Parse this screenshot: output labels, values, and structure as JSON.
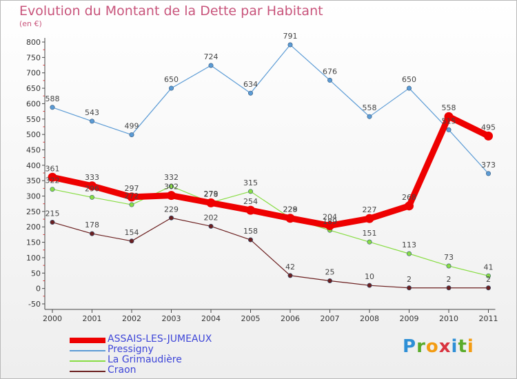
{
  "title": "Evolution du Montant de la Dette par Habitant",
  "subtitle": "(en €)",
  "brand": {
    "text": "Proxiti",
    "colors": [
      "#2e8fd6",
      "#5aab2a",
      "#f39c12",
      "#d9333f",
      "#2e8fd6",
      "#5aab2a",
      "#f39c12"
    ]
  },
  "chart_data": {
    "type": "line",
    "x": [
      "2000",
      "2001",
      "2002",
      "2003",
      "2004",
      "2005",
      "2006",
      "2007",
      "2008",
      "2009",
      "2010",
      "2011"
    ],
    "ylim": [
      -50,
      800
    ],
    "yticks": [
      -50,
      0,
      50,
      100,
      150,
      200,
      250,
      300,
      350,
      400,
      450,
      500,
      550,
      600,
      650,
      700,
      750,
      800
    ],
    "grid": false,
    "legend": "bottom-left",
    "series": [
      {
        "name": "ASSAIS-LES-JUMEAUX",
        "color": "#ee0000",
        "values": [
          361,
          333,
          297,
          302,
          278,
          254,
          228,
          204,
          227,
          268,
          558,
          495
        ],
        "labels": [
          "361",
          "333",
          "297",
          "302",
          "278",
          "254",
          "228",
          "204",
          "227",
          "268",
          "558",
          "495"
        ]
      },
      {
        "name": "Pressigny",
        "color": "#5b9bd5",
        "values": [
          588,
          543,
          499,
          650,
          724,
          634,
          791,
          676,
          558,
          650,
          515,
          373
        ],
        "labels": [
          "588",
          "543",
          "499",
          "650",
          "724",
          "634",
          "791",
          "676",
          "558",
          "650",
          "515",
          "373"
        ]
      },
      {
        "name": "La Grimaudière",
        "color": "#88dd44",
        "values": [
          322,
          296,
          272,
          332,
          279,
          315,
          229,
          189,
          151,
          113,
          73,
          41
        ],
        "labels": [
          "322",
          "296",
          "272",
          "332",
          "279",
          "315",
          "229",
          "189",
          "151",
          "113",
          "73",
          "41"
        ]
      },
      {
        "name": "Craon",
        "color": "#6b1f1f",
        "values": [
          215,
          178,
          154,
          229,
          202,
          158,
          42,
          25,
          10,
          2,
          2,
          2
        ],
        "labels": [
          "215",
          "178",
          "154",
          "229",
          "202",
          "158",
          "42",
          "25",
          "10",
          "2",
          "2",
          "2"
        ]
      }
    ]
  }
}
